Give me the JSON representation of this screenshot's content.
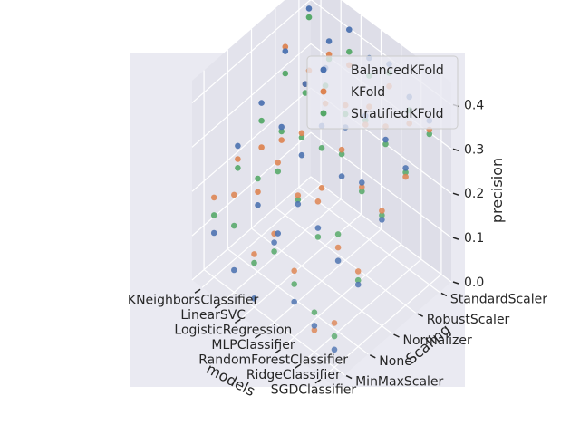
{
  "chart_data": {
    "type": "scatter",
    "projection": "3d",
    "title": "",
    "xlabel": "models",
    "ylabel": "Scaling",
    "zlabel": "precision",
    "x_categories": [
      "KNeighborsClassifier",
      "LinearSVC",
      "LogisticRegression",
      "MLPClassifier",
      "RandomForestClassifier",
      "RidgeClassifier",
      "SGDClassifier"
    ],
    "y_categories": [
      "MinMaxScaler",
      "None",
      "Normalizer",
      "RobustScaler",
      "StandardScaler"
    ],
    "z_ticks": [
      "0.0",
      "0.1",
      "0.2",
      "0.3",
      "0.4"
    ],
    "zlim": [
      0.0,
      0.45
    ],
    "grid": true,
    "legend_position": "top-right",
    "series": [
      {
        "name": "BalancedKFold",
        "color": "#4c72b0",
        "points": [
          [
            0,
            0,
            0.1
          ],
          [
            0,
            1,
            0.25
          ],
          [
            0,
            2,
            0.3
          ],
          [
            0,
            3,
            0.37
          ],
          [
            0,
            4,
            0.42
          ],
          [
            1,
            0,
            0.05
          ],
          [
            1,
            1,
            0.15
          ],
          [
            1,
            2,
            0.28
          ],
          [
            1,
            3,
            0.33
          ],
          [
            1,
            4,
            0.38
          ],
          [
            2,
            0,
            0.02
          ],
          [
            2,
            1,
            0.12
          ],
          [
            2,
            2,
            0.25
          ],
          [
            2,
            3,
            0.4
          ],
          [
            2,
            4,
            0.44
          ],
          [
            3,
            0,
            0.18
          ],
          [
            3,
            1,
            0.22
          ],
          [
            3,
            2,
            0.35
          ],
          [
            3,
            3,
            0.3
          ],
          [
            3,
            4,
            0.41
          ],
          [
            4,
            0,
            0.08
          ],
          [
            4,
            1,
            0.2
          ],
          [
            4,
            2,
            0.27
          ],
          [
            4,
            3,
            0.36
          ],
          [
            4,
            4,
            0.43
          ],
          [
            5,
            0,
            0.06
          ],
          [
            5,
            1,
            0.16
          ],
          [
            5,
            2,
            0.29
          ],
          [
            5,
            3,
            0.34
          ],
          [
            5,
            4,
            0.39
          ],
          [
            6,
            0,
            0.04
          ],
          [
            6,
            1,
            0.14
          ],
          [
            6,
            2,
            0.24
          ],
          [
            6,
            3,
            0.31
          ],
          [
            6,
            4,
            0.37
          ]
        ]
      },
      {
        "name": "KFold",
        "color": "#dd8452",
        "points": [
          [
            0,
            0,
            0.18
          ],
          [
            0,
            1,
            0.22
          ],
          [
            0,
            2,
            0.2
          ],
          [
            0,
            3,
            0.38
          ],
          [
            0,
            4,
            0.28
          ],
          [
            1,
            0,
            0.22
          ],
          [
            1,
            1,
            0.18
          ],
          [
            1,
            2,
            0.25
          ],
          [
            1,
            3,
            0.33
          ],
          [
            1,
            4,
            0.35
          ],
          [
            2,
            0,
            0.12
          ],
          [
            2,
            1,
            0.28
          ],
          [
            2,
            2,
            0.3
          ],
          [
            2,
            3,
            0.32
          ],
          [
            2,
            4,
            0.36
          ],
          [
            3,
            0,
            0.2
          ],
          [
            3,
            1,
            0.24
          ],
          [
            3,
            2,
            0.21
          ],
          [
            3,
            3,
            0.35
          ],
          [
            3,
            4,
            0.3
          ],
          [
            4,
            0,
            0.15
          ],
          [
            4,
            1,
            0.26
          ],
          [
            4,
            2,
            0.33
          ],
          [
            4,
            3,
            0.34
          ],
          [
            4,
            4,
            0.38
          ],
          [
            5,
            0,
            0.05
          ],
          [
            5,
            1,
            0.19
          ],
          [
            5,
            2,
            0.28
          ],
          [
            5,
            3,
            0.37
          ],
          [
            5,
            4,
            0.33
          ],
          [
            6,
            0,
            0.1
          ],
          [
            6,
            1,
            0.17
          ],
          [
            6,
            2,
            0.26
          ],
          [
            6,
            3,
            0.29
          ],
          [
            6,
            4,
            0.35
          ]
        ]
      },
      {
        "name": "StratifiedKFold",
        "color": "#55a868",
        "points": [
          [
            0,
            0,
            0.14
          ],
          [
            0,
            1,
            0.2
          ],
          [
            0,
            2,
            0.26
          ],
          [
            0,
            3,
            0.32
          ],
          [
            0,
            4,
            0.4
          ],
          [
            1,
            0,
            0.15
          ],
          [
            1,
            1,
            0.21
          ],
          [
            1,
            2,
            0.27
          ],
          [
            1,
            3,
            0.31
          ],
          [
            1,
            4,
            0.34
          ],
          [
            2,
            0,
            0.1
          ],
          [
            2,
            1,
            0.26
          ],
          [
            2,
            2,
            0.29
          ],
          [
            2,
            3,
            0.36
          ],
          [
            2,
            4,
            0.39
          ],
          [
            3,
            0,
            0.16
          ],
          [
            3,
            1,
            0.23
          ],
          [
            3,
            2,
            0.3
          ],
          [
            3,
            3,
            0.33
          ],
          [
            3,
            4,
            0.37
          ],
          [
            4,
            0,
            0.12
          ],
          [
            4,
            1,
            0.18
          ],
          [
            4,
            2,
            0.32
          ],
          [
            4,
            3,
            0.35
          ],
          [
            4,
            4,
            0.41
          ],
          [
            5,
            0,
            0.09
          ],
          [
            5,
            1,
            0.22
          ],
          [
            5,
            2,
            0.27
          ],
          [
            5,
            3,
            0.33
          ],
          [
            5,
            4,
            0.36
          ],
          [
            6,
            0,
            0.07
          ],
          [
            6,
            1,
            0.15
          ],
          [
            6,
            2,
            0.25
          ],
          [
            6,
            3,
            0.3
          ],
          [
            6,
            4,
            0.34
          ]
        ]
      }
    ]
  }
}
